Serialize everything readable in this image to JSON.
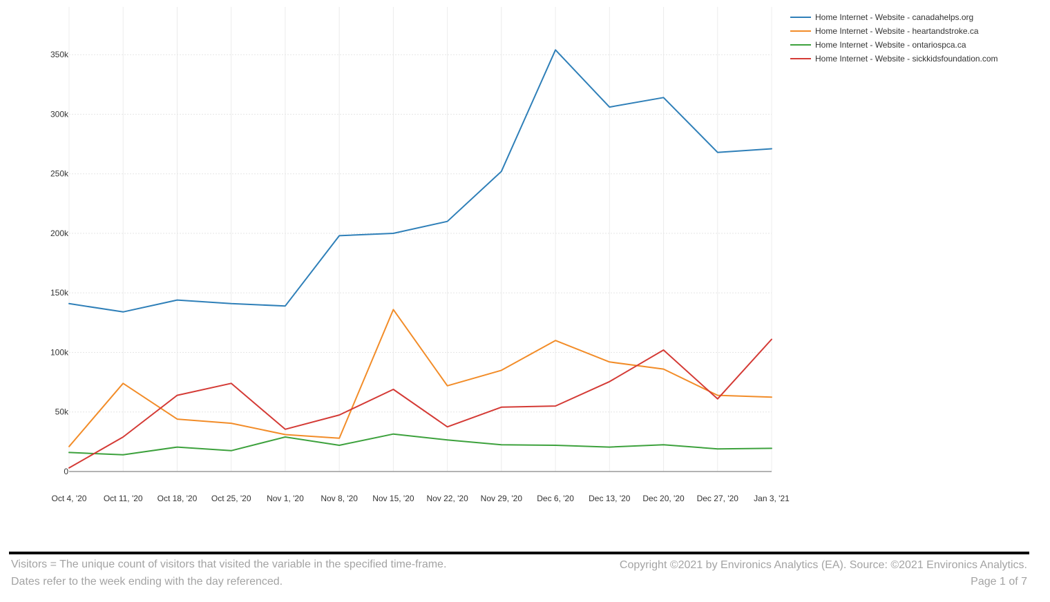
{
  "chart_data": {
    "type": "line",
    "title": "",
    "xlabel": "",
    "ylabel": "",
    "categories": [
      "Oct 4, '20",
      "Oct 11, '20",
      "Oct 18, '20",
      "Oct 25, '20",
      "Nov 1, '20",
      "Nov 8, '20",
      "Nov 15, '20",
      "Nov 22, '20",
      "Nov 29, '20",
      "Dec 6, '20",
      "Dec 13, '20",
      "Dec 20, '20",
      "Dec 27, '20",
      "Jan 3, '21"
    ],
    "ylim": [
      0,
      370000
    ],
    "yticks": [
      0,
      50000,
      100000,
      150000,
      200000,
      250000,
      300000,
      350000
    ],
    "ytick_labels": [
      "0",
      "50k",
      "100k",
      "150k",
      "200k",
      "250k",
      "300k",
      "350k"
    ],
    "grid": true,
    "legend_position": "top-right",
    "series": [
      {
        "name": "Home Internet -  Website  -  canadahelps.org",
        "color": "#2e7fb8",
        "values": [
          141000,
          134000,
          144000,
          141000,
          139000,
          198000,
          200000,
          210000,
          252000,
          354000,
          306000,
          314000,
          268000,
          271000
        ]
      },
      {
        "name": "Home Internet -  Website  -  heartandstroke.ca",
        "color": "#f28c28",
        "values": [
          21000,
          74000,
          44000,
          40500,
          31000,
          28000,
          136000,
          72000,
          85000,
          110000,
          92000,
          86000,
          64000,
          62500
        ]
      },
      {
        "name": "Home Internet -  Website  -  ontariospca.ca",
        "color": "#3ca13c",
        "values": [
          16000,
          14000,
          20500,
          17500,
          29000,
          22000,
          31500,
          26500,
          22500,
          22000,
          20500,
          22500,
          19000,
          19500
        ]
      },
      {
        "name": "Home Internet -  Website  -  sickkidsfoundation.com",
        "color": "#d43a35",
        "values": [
          3000,
          29000,
          64000,
          74000,
          35500,
          47500,
          69000,
          37500,
          54000,
          55000,
          75500,
          102000,
          61000,
          111000
        ]
      }
    ]
  },
  "footer": {
    "definition": "Visitors = The unique count of visitors that visited the variable in the specified time-frame.",
    "dates_note": "Dates refer to the week ending with the day referenced.",
    "copyright": "Copyright ©2021 by Environics Analytics (EA). Source: ©2021 Environics Analytics.",
    "page": "Page 1 of 7"
  }
}
